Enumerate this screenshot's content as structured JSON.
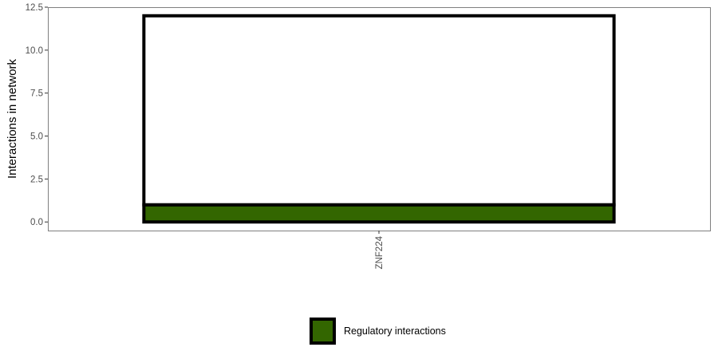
{
  "chart_data": {
    "type": "bar",
    "title": "",
    "xlabel": "",
    "ylabel": "Interactions in network",
    "categories": [
      "ZNF224"
    ],
    "series": [
      {
        "name": "Regulatory interactions",
        "values": [
          1
        ],
        "color": "#336600"
      },
      {
        "name": "",
        "values": [
          11
        ],
        "color": "#ffffff"
      }
    ],
    "totals": [
      12
    ],
    "ylim": [
      -0.5,
      12.5
    ],
    "yticks": [
      0.0,
      2.5,
      5.0,
      7.5,
      10.0,
      12.5
    ],
    "ytick_labels": [
      "0.0",
      "2.5",
      "5.0",
      "7.5",
      "10.0",
      "12.5"
    ],
    "grid": false,
    "legend_position": "bottom",
    "legend": [
      {
        "label": "Regulatory interactions",
        "color": "#336600"
      }
    ]
  }
}
